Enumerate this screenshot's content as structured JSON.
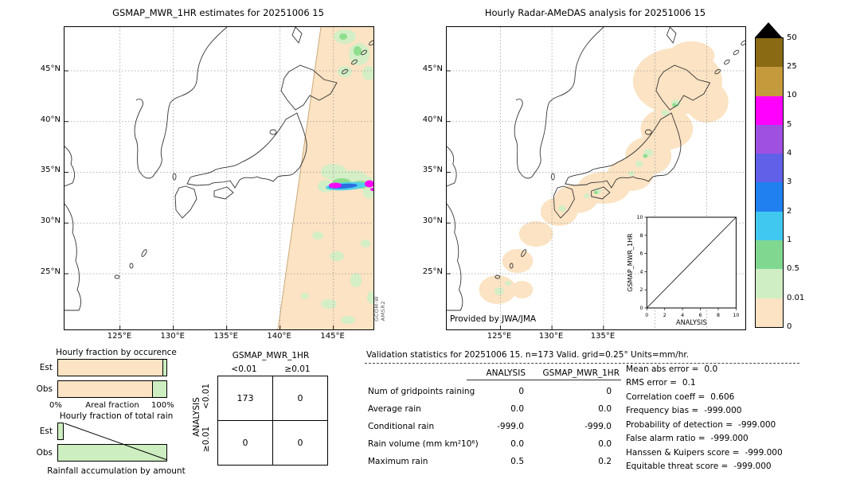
{
  "colors": {
    "peach": "#fbe3c3",
    "bar_green": "#cdeec0",
    "pale_green": "#d4eec6",
    "green": "#8ede8e",
    "cyan": "#4fd0e8",
    "blue": "#2b6fe0",
    "magenta": "#ff00ff"
  },
  "colorbar": {
    "overflow_color": "#000000",
    "labels": [
      "50",
      "25",
      "10",
      "5",
      "4",
      "3",
      "2",
      "1",
      "0.5",
      "0.01",
      "0"
    ],
    "colors": [
      "#8a6b14",
      "#c49a3c",
      "#ff00ff",
      "#a050e0",
      "#6060e8",
      "#2080f0",
      "#40c8f0",
      "#80d890",
      "#d0eec4",
      "#fbe3c3"
    ]
  },
  "left_map": {
    "title": "GSMAP_MWR_1HR estimates for 20251006 15",
    "lat_ticks": [
      "45°N",
      "40°N",
      "35°N",
      "30°N",
      "25°N"
    ],
    "lon_ticks": [
      "125°E",
      "130°E",
      "135°E",
      "140°E",
      "145°E"
    ],
    "watermark": [
      "GCOM-W",
      "AMSR2"
    ]
  },
  "right_map": {
    "title": "Hourly Radar-AMeDAS analysis for 20251006 15",
    "lat_ticks": [
      "45°N",
      "40°N",
      "35°N",
      "30°N",
      "25°N"
    ],
    "lon_ticks": [
      "125°E",
      "130°E",
      "135°E"
    ],
    "credit": "Provided by JWA/JMA",
    "inset": {
      "ylabel": "GSMAP_MWR_1HR",
      "xlabel": "ANALYSIS",
      "x_ticks": [
        "0",
        "2",
        "4",
        "6",
        "8",
        "10"
      ],
      "y_ticks": [
        "0",
        "2",
        "4",
        "6",
        "8",
        "10"
      ]
    }
  },
  "occurrence_chart": {
    "title": "Hourly fraction by occurence",
    "row_labels": [
      "Est",
      "Obs"
    ],
    "xlabel": "Areal fraction",
    "x_min_label": "0%",
    "x_max_label": "100%",
    "est_no_rain_pct": 96,
    "est_rain_pct": 4,
    "obs_no_rain_pct": 87,
    "obs_rain_pct": 13
  },
  "total_rain_chart": {
    "title": "Hourly fraction of total rain",
    "row_labels": [
      "Est",
      "Obs"
    ],
    "caption": "Rainfall accumulation by amount",
    "est_pct": 6,
    "obs_pct": 100
  },
  "contingency": {
    "title": "GSMAP_MWR_1HR",
    "col_headers": [
      "<0.01",
      "≥0.01"
    ],
    "row_headers": [
      "<0.01",
      "≥0.01"
    ],
    "row_axis_label": "ANALYSIS",
    "cells": [
      [
        "173",
        "0"
      ],
      [
        "0",
        "0"
      ]
    ]
  },
  "stats": {
    "header": "Validation statistics for 20251006 15. n=173 Valid. grid=0.25° Units=mm/hr.",
    "col1": "ANALYSIS",
    "col2": "GSMAP_MWR_1HR",
    "rows": [
      {
        "label": "Num of gridpoints raining",
        "analysis": "0",
        "gsmap": "0"
      },
      {
        "label": "Average rain",
        "analysis": "0.0",
        "gsmap": "0.0"
      },
      {
        "label": "Conditional rain",
        "analysis": "-999.0",
        "gsmap": "-999.0"
      },
      {
        "label": "Rain volume (mm km²10⁶)",
        "analysis": "0.0",
        "gsmap": "0.0"
      },
      {
        "label": "Maximum rain",
        "analysis": "0.5",
        "gsmap": "0.2"
      }
    ],
    "scores": [
      {
        "label": "Mean abs error =",
        "value": "0.0"
      },
      {
        "label": "RMS error =",
        "value": "0.1"
      },
      {
        "label": "Correlation coeff =",
        "value": "0.606"
      },
      {
        "label": "Frequency bias =",
        "value": "-999.000"
      },
      {
        "label": "Probability of detection =",
        "value": "-999.000"
      },
      {
        "label": "False alarm ratio =",
        "value": "-999.000"
      },
      {
        "label": "Hanssen & Kuipers score =",
        "value": "-999.000"
      },
      {
        "label": "Equitable threat score =",
        "value": "-999.000"
      }
    ]
  },
  "chart_data": [
    {
      "id": "left-map",
      "type": "heatmap",
      "title": "GSMAP_MWR_1HR estimates for 20251006 15",
      "x_ticks": [
        "125°E",
        "130°E",
        "135°E",
        "140°E",
        "145°E"
      ],
      "y_ticks": [
        "45°N",
        "40°N",
        "35°N",
        "30°N",
        "25°N"
      ],
      "units": "mm/hr",
      "scale_levels": [
        0,
        0.01,
        0.5,
        1,
        2,
        3,
        4,
        5,
        10,
        25,
        50
      ],
      "legend_position": "right",
      "description": "Satellite (GCOM-W AMSR2) swath east of a diagonal edge near 140°E; mostly 0-0.01 mm/hr with scattered 0.01-1 patches and an intense 1-25 mm/hr band near 33°N 143-147°E"
    },
    {
      "id": "right-map",
      "type": "heatmap",
      "title": "Hourly Radar-AMeDAS analysis for 20251006 15",
      "x_ticks": [
        "125°E",
        "130°E",
        "135°E"
      ],
      "y_ticks": [
        "45°N",
        "40°N",
        "35°N",
        "30°N",
        "25°N"
      ],
      "units": "mm/hr",
      "description": "Radar-AMeDAS coverage along the Japanese archipelago, mostly 0-0.01 mm/hr with small 0.01-1 mm/hr patches"
    },
    {
      "id": "occurrence",
      "type": "bar",
      "title": "Hourly fraction by occurence",
      "categories": [
        "Est",
        "Obs"
      ],
      "series": [
        {
          "name": "<0.01 mm/hr",
          "color": "#fbe3c3",
          "values": [
            96,
            87
          ]
        },
        {
          "name": "≥0.01 mm/hr",
          "color": "#cdeec0",
          "values": [
            4,
            13
          ]
        }
      ],
      "xlabel": "Areal fraction",
      "xlim": [
        "0%",
        "100%"
      ]
    },
    {
      "id": "total-rain",
      "type": "bar",
      "title": "Hourly fraction of total rain",
      "categories": [
        "Est",
        "Obs"
      ],
      "series": [
        {
          "name": "fraction of total rain",
          "color": "#cdeec0",
          "values": [
            6,
            100
          ]
        }
      ],
      "xlabel": "Rainfall accumulation by amount"
    },
    {
      "id": "contingency",
      "type": "table",
      "title": "GSMAP_MWR_1HR",
      "col_headers": [
        "<0.01",
        "≥0.01"
      ],
      "row_headers": [
        "<0.01",
        "≥0.01"
      ],
      "row_axis_label": "ANALYSIS",
      "values": [
        [
          173,
          0
        ],
        [
          0,
          0
        ]
      ]
    },
    {
      "id": "validation-statistics",
      "type": "table",
      "title": "Validation statistics for 20251006 15. n=173 Valid. grid=0.25° Units=mm/hr.",
      "columns": [
        "ANALYSIS",
        "GSMAP_MWR_1HR"
      ],
      "rows": [
        [
          "Num of gridpoints raining",
          "0",
          "0"
        ],
        [
          "Average rain",
          "0.0",
          "0.0"
        ],
        [
          "Conditional rain",
          "-999.0",
          "-999.0"
        ],
        [
          "Rain volume (mm km²10⁶)",
          "0.0",
          "0.0"
        ],
        [
          "Maximum rain",
          "0.5",
          "0.2"
        ]
      ],
      "scores": {
        "Mean abs error": 0.0,
        "RMS error": 0.1,
        "Correlation coeff": 0.606,
        "Frequency bias": -999.0,
        "Probability of detection": -999.0,
        "False alarm ratio": -999.0,
        "Hanssen & Kuipers score": -999.0,
        "Equitable threat score": -999.0
      }
    },
    {
      "id": "inset-scatter",
      "type": "scatter",
      "xlabel": "ANALYSIS",
      "ylabel": "GSMAP_MWR_1HR",
      "xlim": [
        0,
        10
      ],
      "ylim": [
        0,
        10
      ],
      "x_ticks": [
        0,
        2,
        4,
        6,
        8,
        10
      ],
      "y_ticks": [
        0,
        2,
        4,
        6,
        8,
        10
      ],
      "points": [],
      "reference_line": "y = x"
    }
  ]
}
